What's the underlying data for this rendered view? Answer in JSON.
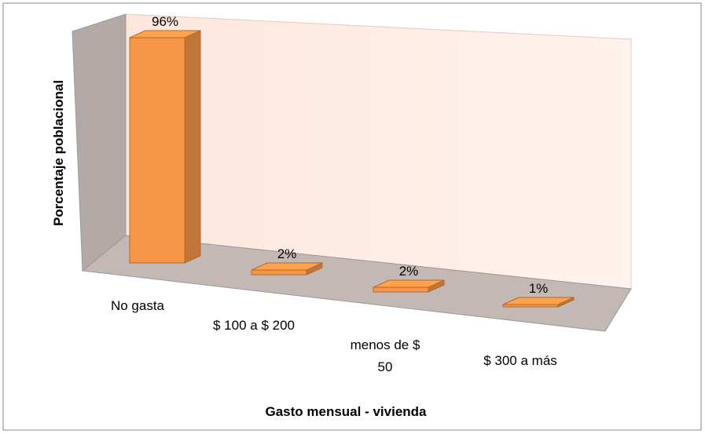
{
  "chart_data": {
    "type": "bar3d",
    "x_label": "Gasto mensual - vivienda",
    "y_label": "Porcentaje poblacional",
    "categories": [
      "No gasta",
      "$ 100 a $ 200",
      "menos de $ 50",
      "$ 300 a más"
    ],
    "values": [
      96,
      2,
      2,
      1
    ],
    "value_labels": [
      "96%",
      "2%",
      "2%",
      "1%"
    ],
    "color": "#f79646"
  }
}
